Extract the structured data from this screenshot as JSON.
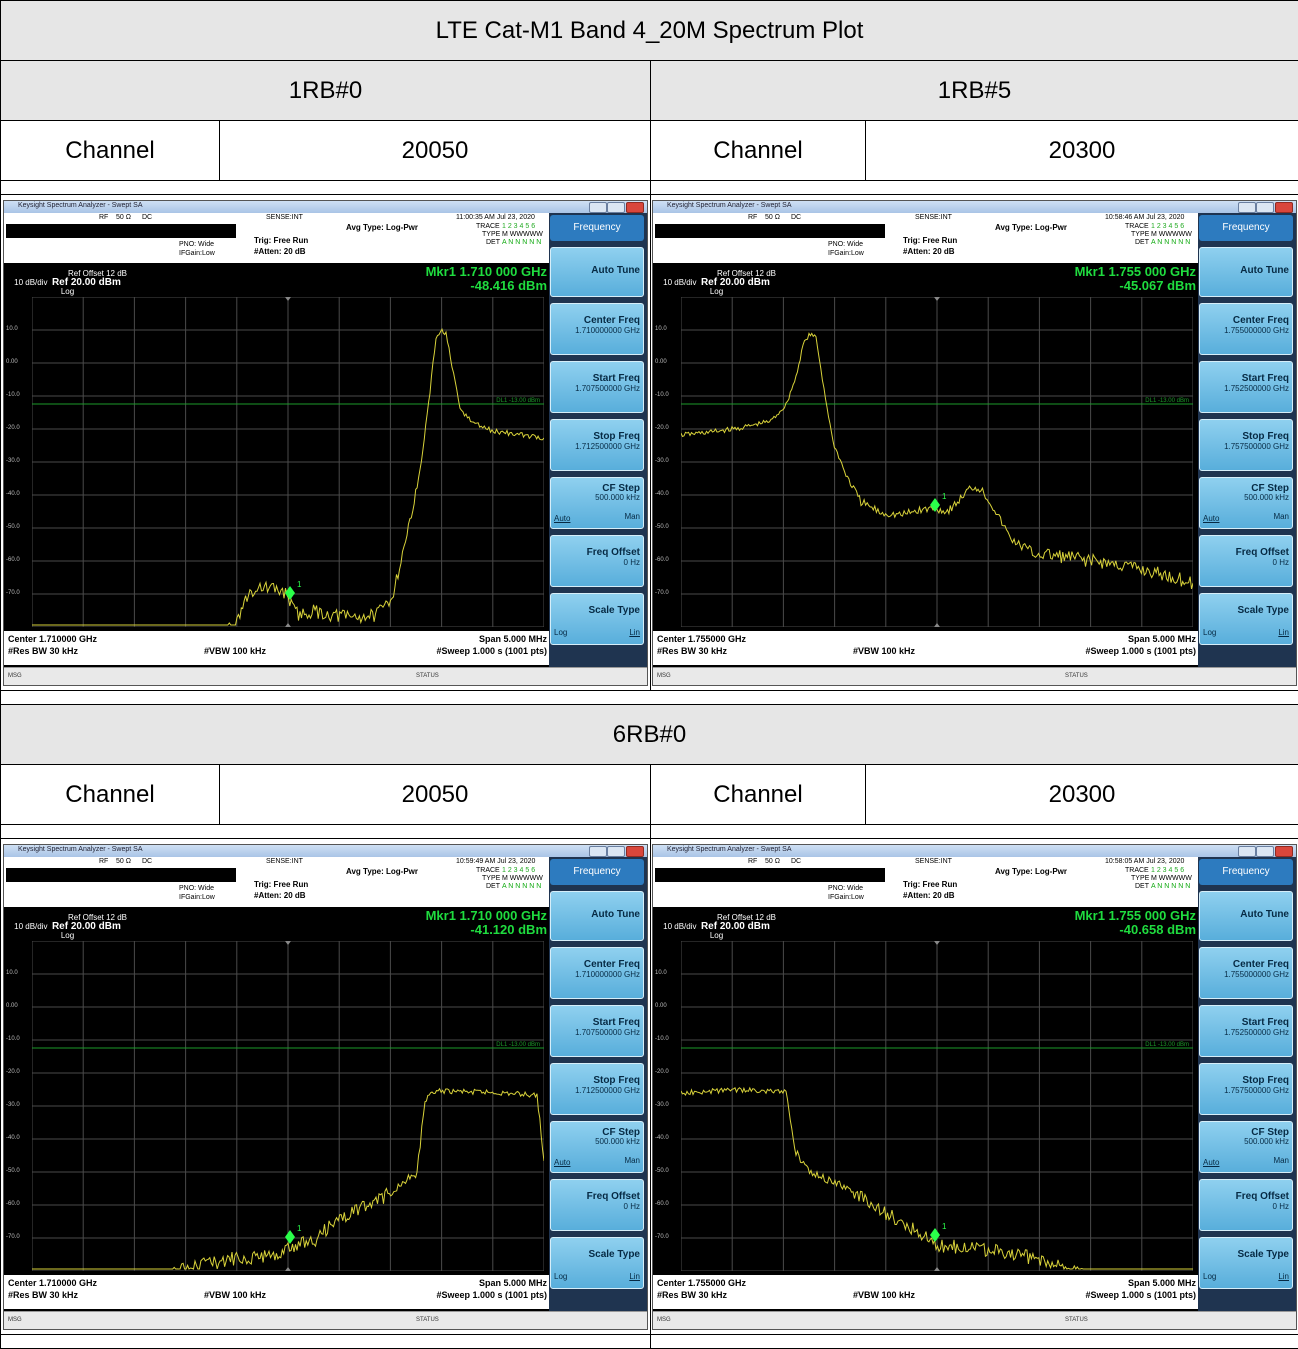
{
  "title": "LTE Cat-M1 Band 4_20M Spectrum Plot",
  "rb_1_0": "1RB#0",
  "rb_1_5": "1RB#5",
  "rb_6_0": "6RB#0",
  "channel_label": "Channel",
  "channel_low": "20050",
  "channel_high": "20300",
  "analyzer_common": {
    "app_title": "Keysight Spectrum Analyzer - Swept SA",
    "rf": "RF",
    "ohm": "50 Ω",
    "dc": "DC",
    "sense": "SENSE:INT",
    "avg_type": "Avg Type: Log-Pwr",
    "trace": "TRACE",
    "type": "TYPE",
    "det": "DET",
    "trace_nums": "1 2 3 4 5 6",
    "type_vals": "M WWWWW",
    "det_vals": "A N N N N N",
    "pno": "PNO: Wide",
    "ifgain": "IFGain:Low",
    "trig": "Trig: Free Run",
    "atten": "#Atten: 20 dB",
    "ref_offset": "Ref Offset 12 dB",
    "ref_level": "Ref 20.00 dBm",
    "scale": "10 dB/div",
    "log": "Log",
    "dl_label": "DL1 -13.00 dBm",
    "res_bw": "#Res BW 30 kHz",
    "vbw": "#VBW 100 kHz",
    "span": "Span 5.000 MHz",
    "sweep": "#Sweep  1.000 s (1001 pts)",
    "msg": "MSG",
    "status": "STATUS",
    "y_ticks": [
      "10.0",
      "0.00",
      "-10.0",
      "-20.0",
      "-30.0",
      "-40.0",
      "-50.0",
      "-60.0",
      "-70.0"
    ],
    "menu_frequency": "Frequency",
    "menu_auto_tune": "Auto Tune",
    "menu_center_freq": "Center Freq",
    "menu_start_freq": "Start Freq",
    "menu_stop_freq": "Stop Freq",
    "menu_cf_step": "CF Step",
    "cf_step_val": "500.000 kHz",
    "auto": "Auto",
    "man": "Man",
    "menu_freq_offset": "Freq Offset",
    "freq_offset_val": "0 Hz",
    "menu_scale_type": "Scale Type",
    "log_opt": "Log",
    "lin_opt": "Lin",
    "marker_num": "1"
  },
  "plots": [
    {
      "time": "11:00:35 AM Jul 23, 2020",
      "mkr_freq": "Mkr1 1.710 000 GHz",
      "mkr_val": "-48.416 dBm",
      "center": "Center 1.710000 GHz",
      "center_val": "1.710000000 GHz",
      "start_val": "1.707500000 GHz",
      "stop_val": "1.712500000 GHz",
      "shape": "p1"
    },
    {
      "time": "10:58:46 AM Jul 23, 2020",
      "mkr_freq": "Mkr1 1.755 000 GHz",
      "mkr_val": "-45.067 dBm",
      "center": "Center 1.755000 GHz",
      "center_val": "1.755000000 GHz",
      "start_val": "1.752500000 GHz",
      "stop_val": "1.757500000 GHz",
      "shape": "p2"
    },
    {
      "time": "10:59:49 AM Jul 23, 2020",
      "mkr_freq": "Mkr1 1.710 000 GHz",
      "mkr_val": "-41.120 dBm",
      "center": "Center 1.710000 GHz",
      "center_val": "1.710000000 GHz",
      "start_val": "1.707500000 GHz",
      "stop_val": "1.712500000 GHz",
      "shape": "p3"
    },
    {
      "time": "10:58:05 AM Jul 23, 2020",
      "mkr_freq": "Mkr1 1.755 000 GHz",
      "mkr_val": "-40.658 dBm",
      "center": "Center 1.755000 GHz",
      "center_val": "1.755000000 GHz",
      "start_val": "1.752500000 GHz",
      "stop_val": "1.757500000 GHz",
      "shape": "p4"
    }
  ]
}
